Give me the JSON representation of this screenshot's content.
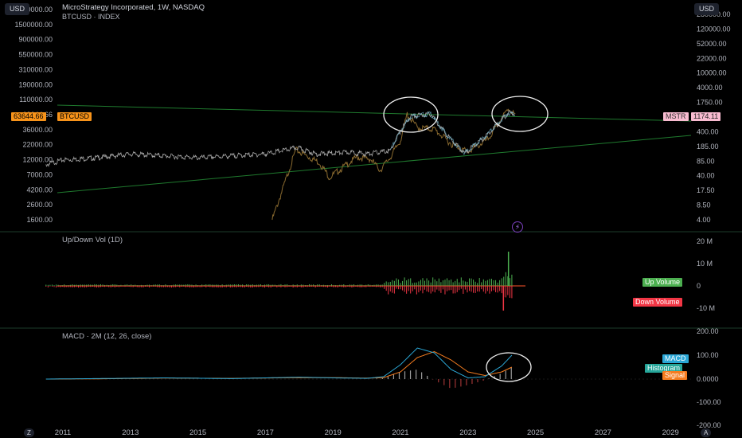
{
  "toolbar": {
    "currency_left": "USD",
    "currency_right": "USD",
    "zoom_button": "Z",
    "auto_button": "A"
  },
  "header": {
    "symbol_line": "MicroStrategy Incorporated, 1W, NASDAQ",
    "compare_line": "BTCUSD · INDEX"
  },
  "price_tags": {
    "btc_value": "63644.66",
    "btc_label": "BTCUSD",
    "mstr_label": "MSTR",
    "mstr_value": "1174.11"
  },
  "panes": {
    "volume_title": "Up/Down Vol (1D)",
    "up_volume_label": "Up Volume",
    "down_volume_label": "Down Volume",
    "macd_title": "MACD · 2M (12, 26, close)",
    "macd_label": "MACD",
    "histogram_label": "Histogram",
    "signal_label": "Signal"
  },
  "colors": {
    "background": "#000000",
    "btc_line": "#a6a6a6",
    "mstr_line": "#8a6a2f",
    "trendline": "#1f7a2e",
    "up": "#4caf50",
    "down": "#f23645",
    "macd": "#2ba7d6",
    "signal": "#f57c1f",
    "btc_tag": "#f7931a",
    "mstr_tag": "#f8bbd0"
  },
  "chart_data": {
    "type": "line",
    "x_axis_years": [
      "2011",
      "2013",
      "2015",
      "2017",
      "2019",
      "2021",
      "2023",
      "2025",
      "2027",
      "2029"
    ],
    "left_axis_ticks": [
      "2500000.00",
      "1500000.00",
      "900000.00",
      "550000.00",
      "310000.00",
      "190000.00",
      "110000.00",
      "63644.66",
      "36000.00",
      "22000.00",
      "12000.00",
      "7000.00",
      "4200.00",
      "2600.00",
      "1600.00"
    ],
    "right_axis_ticks": [
      "280000.00",
      "120000.00",
      "52000.00",
      "22000.00",
      "10000.00",
      "4000.00",
      "1750.00",
      "850.00",
      "400.00",
      "185.00",
      "85.00",
      "40.00",
      "17.50",
      "8.50",
      "4.00"
    ],
    "volume_axis_ticks": [
      "20 M",
      "10 M",
      "0",
      "-10 M"
    ],
    "macd_axis_ticks": [
      "200.00",
      "100.00",
      "0.0000",
      "-100.00",
      "-200.00"
    ],
    "series": [
      {
        "name": "BTCUSD",
        "x": [
          2010.5,
          2011,
          2012,
          2013,
          2014,
          2015,
          2016,
          2017,
          2017.95,
          2018.5,
          2019,
          2019.5,
          2020,
          2020.7,
          2021,
          2021.3,
          2021.9,
          2022.4,
          2022.9,
          2023.5,
          2024.2,
          2024.4
        ],
        "y": [
          11000,
          13000,
          14000,
          16000,
          15000,
          14000,
          15000,
          16000,
          20000,
          16000,
          16500,
          17000,
          16000,
          18000,
          36000,
          60000,
          65000,
          30000,
          16500,
          29000,
          68000,
          63644.66
        ]
      },
      {
        "name": "MSTR",
        "x": [
          2017.2,
          2017.5,
          2017.9,
          2018.3,
          2018.6,
          2018.9,
          2019.3,
          2019.7,
          2020.1,
          2020.4,
          2020.7,
          2021,
          2021.2,
          2021.5,
          2022,
          2022.5,
          2023,
          2023.6,
          2024.2,
          2024.4
        ],
        "y": [
          4,
          20,
          180,
          120,
          90,
          40,
          70,
          120,
          110,
          60,
          120,
          300,
          1250,
          600,
          550,
          250,
          160,
          320,
          1700,
          1174.11
        ]
      }
    ],
    "trendlines": [
      "upper descending channel line",
      "lower ascending support line"
    ],
    "macd": {
      "x": [
        2010.5,
        2012,
        2014,
        2016,
        2018,
        2019,
        2020,
        2020.5,
        2021,
        2021.5,
        2022,
        2022.5,
        2023,
        2023.5,
        2024,
        2024.3
      ],
      "macd": [
        0,
        2,
        5,
        2,
        8,
        5,
        3,
        10,
        60,
        130,
        110,
        40,
        5,
        10,
        55,
        100
      ],
      "signal": [
        0,
        1,
        4,
        3,
        6,
        6,
        4,
        6,
        30,
        90,
        115,
        80,
        30,
        15,
        30,
        50
      ]
    }
  }
}
